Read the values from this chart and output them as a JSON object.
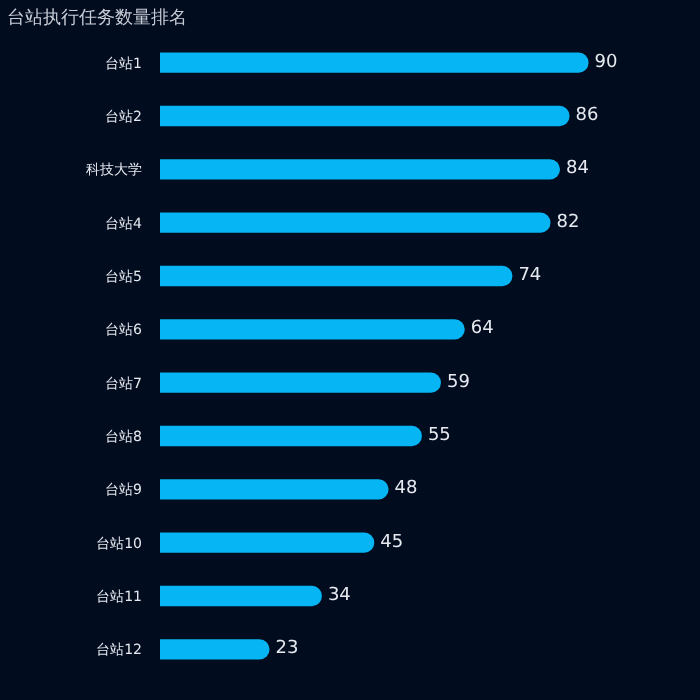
{
  "chart_data": {
    "type": "bar",
    "orientation": "horizontal",
    "title": "台站执行任务数量排名",
    "categories": [
      "台站1",
      "台站2",
      "科技大学",
      "台站4",
      "台站5",
      "台站6",
      "台站7",
      "台站8",
      "台站9",
      "台站10",
      "台站11",
      "台站12"
    ],
    "values": [
      90,
      86,
      84,
      82,
      74,
      64,
      59,
      55,
      48,
      45,
      34,
      23
    ],
    "color": "#06b6f4",
    "data_labels": true,
    "tick_labels": "y"
  }
}
